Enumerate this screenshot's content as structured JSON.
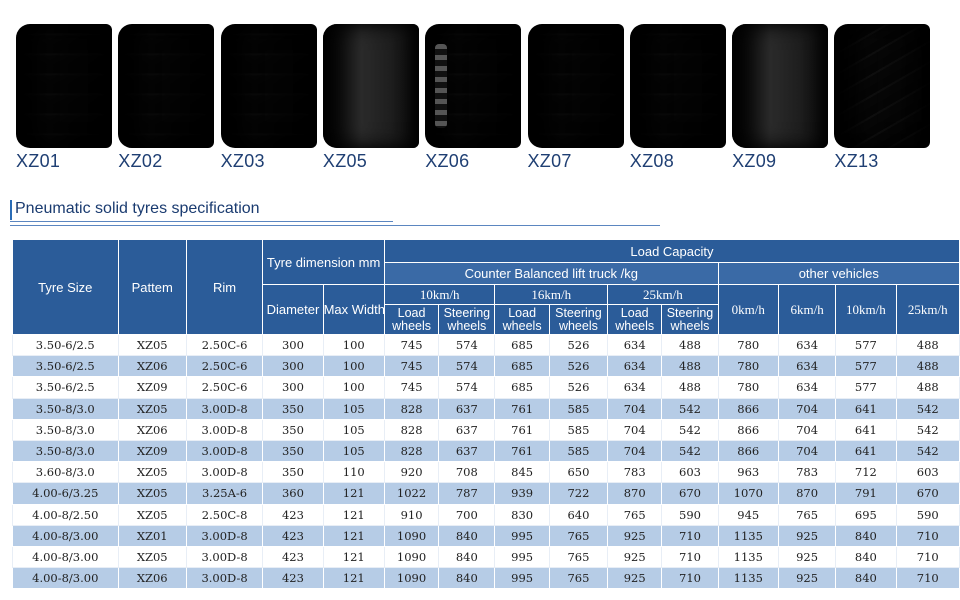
{
  "tyres": [
    {
      "label": "XZ01",
      "style": "lug"
    },
    {
      "label": "XZ02",
      "style": "lug"
    },
    {
      "label": "XZ03",
      "style": "lug"
    },
    {
      "label": "XZ05",
      "style": "smooth"
    },
    {
      "label": "XZ06",
      "style": "holes"
    },
    {
      "label": "XZ07",
      "style": "lug"
    },
    {
      "label": "XZ08",
      "style": "lug"
    },
    {
      "label": "XZ09",
      "style": "smooth"
    },
    {
      "label": "XZ13",
      "style": "rugged"
    }
  ],
  "section_title": "Pneumatic solid tyres specification",
  "table": {
    "headers": {
      "tyre_size": "Tyre Size",
      "pattern": "Pattem",
      "rim": "Rim",
      "tyre_dimension": "Tyre dimension mm",
      "diameter": "Diameter",
      "max_width": "Max Width",
      "load_capacity": "Load Capacity",
      "counter_balanced": "Counter Balanced lift truck /kg",
      "other_vehicles": "other vehicles",
      "speed_10": "10km/h",
      "speed_16": "16km/h",
      "speed_25": "25km/h",
      "load_wheels": "Load wheels",
      "steering_wheels": "Steering wheels",
      "ov_0": "0km/h",
      "ov_6": "6km/h",
      "ov_10": "10km/h",
      "ov_25": "25km/h"
    },
    "rows": [
      [
        "3.50-6/2.5",
        "XZ05",
        "2.50C-6",
        "300",
        "100",
        "745",
        "574",
        "685",
        "526",
        "634",
        "488",
        "780",
        "634",
        "577",
        "488"
      ],
      [
        "3.50-6/2.5",
        "XZ06",
        "2.50C-6",
        "300",
        "100",
        "745",
        "574",
        "685",
        "526",
        "634",
        "488",
        "780",
        "634",
        "577",
        "488"
      ],
      [
        "3.50-6/2.5",
        "XZ09",
        "2.50C-6",
        "300",
        "100",
        "745",
        "574",
        "685",
        "526",
        "634",
        "488",
        "780",
        "634",
        "577",
        "488"
      ],
      [
        "3.50-8/3.0",
        "XZ05",
        "3.00D-8",
        "350",
        "105",
        "828",
        "637",
        "761",
        "585",
        "704",
        "542",
        "866",
        "704",
        "641",
        "542"
      ],
      [
        "3.50-8/3.0",
        "XZ06",
        "3.00D-8",
        "350",
        "105",
        "828",
        "637",
        "761",
        "585",
        "704",
        "542",
        "866",
        "704",
        "641",
        "542"
      ],
      [
        "3.50-8/3.0",
        "XZ09",
        "3.00D-8",
        "350",
        "105",
        "828",
        "637",
        "761",
        "585",
        "704",
        "542",
        "866",
        "704",
        "641",
        "542"
      ],
      [
        "3.60-8/3.0",
        "XZ05",
        "3.00D-8",
        "350",
        "110",
        "920",
        "708",
        "845",
        "650",
        "783",
        "603",
        "963",
        "783",
        "712",
        "603"
      ],
      [
        "4.00-6/3.25",
        "XZ05",
        "3.25A-6",
        "360",
        "121",
        "1022",
        "787",
        "939",
        "722",
        "870",
        "670",
        "1070",
        "870",
        "791",
        "670"
      ],
      [
        "4.00-8/2.50",
        "XZ05",
        "2.50C-8",
        "423",
        "121",
        "910",
        "700",
        "830",
        "640",
        "765",
        "590",
        "945",
        "765",
        "695",
        "590"
      ],
      [
        "4.00-8/3.00",
        "XZ01",
        "3.00D-8",
        "423",
        "121",
        "1090",
        "840",
        "995",
        "765",
        "925",
        "710",
        "1135",
        "925",
        "840",
        "710"
      ],
      [
        "4.00-8/3.00",
        "XZ05",
        "3.00D-8",
        "423",
        "121",
        "1090",
        "840",
        "995",
        "765",
        "925",
        "710",
        "1135",
        "925",
        "840",
        "710"
      ],
      [
        "4.00-8/3.00",
        "XZ06",
        "3.00D-8",
        "423",
        "121",
        "1090",
        "840",
        "995",
        "765",
        "925",
        "710",
        "1135",
        "925",
        "840",
        "710"
      ]
    ],
    "row_shading": [
      "w",
      "b",
      "w",
      "b",
      "w",
      "b",
      "w",
      "b",
      "w",
      "b",
      "w",
      "b"
    ]
  }
}
